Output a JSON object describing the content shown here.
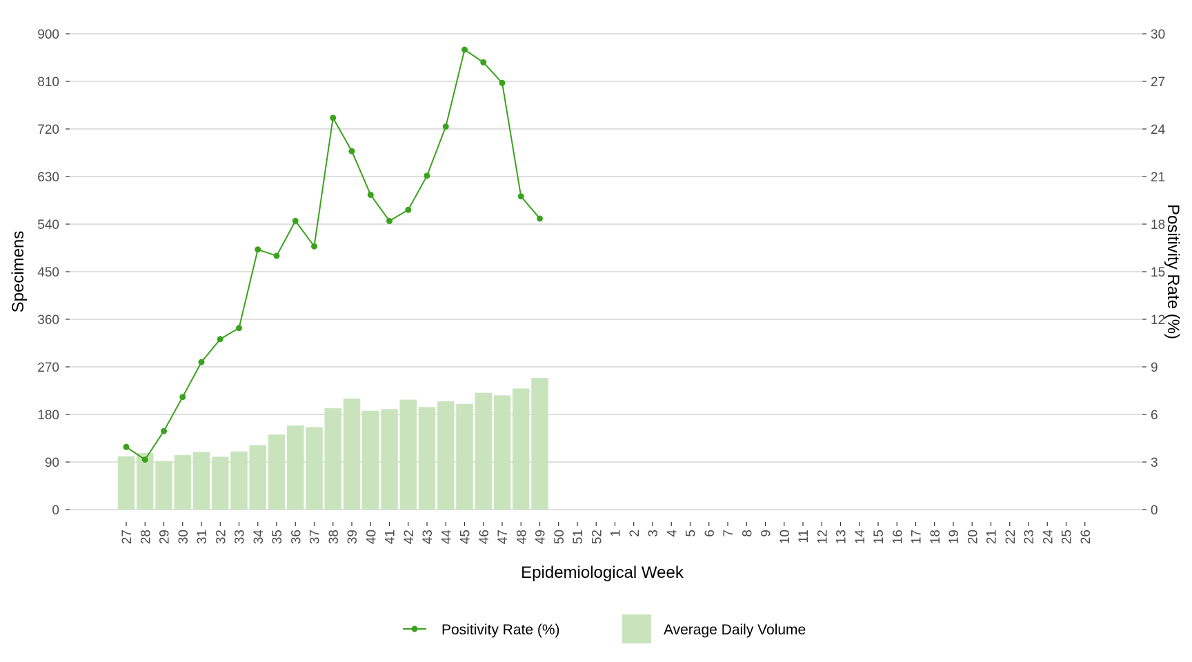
{
  "chart_data": {
    "type": "bar+line",
    "xlabel": "Epidemiological Week",
    "ylabel_left": "Specimens",
    "ylabel_right": "Positivity Rate (%)",
    "ylim_left": [
      0,
      900
    ],
    "ylim_right": [
      0,
      30
    ],
    "yticks_left": [
      "0",
      "90",
      "180",
      "270",
      "360",
      "450",
      "540",
      "630",
      "720",
      "810",
      "900"
    ],
    "yticks_right": [
      "0",
      "3",
      "6",
      "9",
      "12",
      "15",
      "18",
      "21",
      "24",
      "27",
      "30"
    ],
    "grid": "horizontal",
    "legend_position": "bottom",
    "categories": [
      "27",
      "28",
      "29",
      "30",
      "31",
      "32",
      "33",
      "34",
      "35",
      "36",
      "37",
      "38",
      "39",
      "40",
      "41",
      "42",
      "43",
      "44",
      "45",
      "46",
      "47",
      "48",
      "49",
      "50",
      "51",
      "52",
      "1",
      "2",
      "3",
      "4",
      "5",
      "6",
      "7",
      "8",
      "9",
      "10",
      "11",
      "12",
      "13",
      "14",
      "15",
      "16",
      "17",
      "18",
      "19",
      "20",
      "21",
      "22",
      "23",
      "24",
      "25",
      "26"
    ],
    "series": [
      {
        "name": "Average Daily Volume",
        "type": "bar",
        "axis": "left",
        "color": "#c9e4bd",
        "values": [
          101,
          107,
          92,
          103,
          109,
          100,
          110,
          122,
          142,
          159,
          156,
          192,
          210,
          187,
          190,
          208,
          194,
          205,
          200,
          221,
          216,
          229,
          249,
          null,
          null,
          null,
          null,
          null,
          null,
          null,
          null,
          null,
          null,
          null,
          null,
          null,
          null,
          null,
          null,
          null,
          null,
          null,
          null,
          null,
          null,
          null,
          null,
          null,
          null,
          null,
          null,
          null
        ]
      },
      {
        "name": "Positivity Rate (%)",
        "type": "line",
        "axis": "right",
        "color": "#3aa21c",
        "values": [
          3.95,
          3.15,
          4.95,
          7.1,
          9.3,
          10.75,
          11.45,
          16.4,
          16.0,
          18.2,
          16.6,
          24.7,
          22.6,
          19.85,
          18.2,
          18.9,
          21.05,
          24.15,
          29.0,
          28.2,
          26.9,
          19.75,
          18.35,
          null,
          null,
          null,
          null,
          null,
          null,
          null,
          null,
          null,
          null,
          null,
          null,
          null,
          null,
          null,
          null,
          null,
          null,
          null,
          null,
          null,
          null,
          null,
          null,
          null,
          null,
          null,
          null,
          null
        ]
      }
    ]
  },
  "legend": {
    "line_label": "Positivity Rate (%)",
    "bar_label": "Average Daily Volume"
  }
}
